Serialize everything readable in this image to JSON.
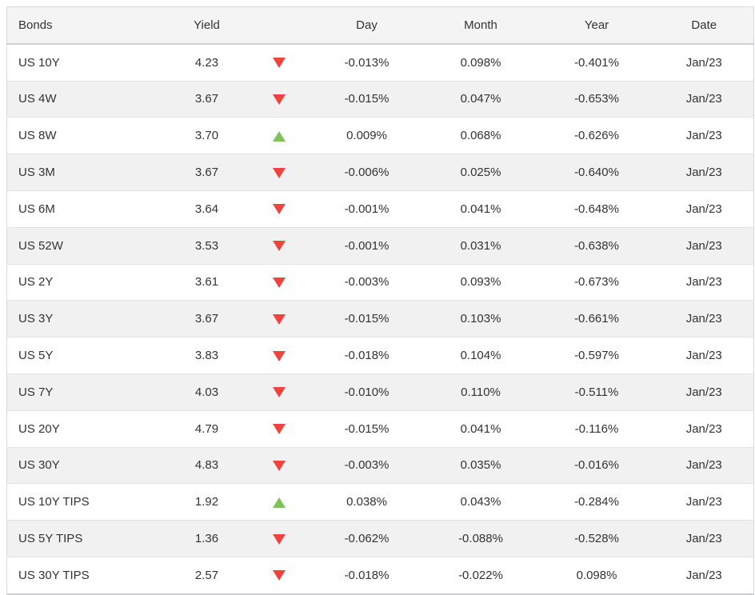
{
  "colors": {
    "trend_up": "#7bc356",
    "trend_down": "#ee443e",
    "header_background": "#f4f4f5",
    "row_stripe": "#f1f1f2",
    "border": "#d9dadc",
    "text": "#333333"
  },
  "table": {
    "columns": [
      {
        "key": "bond",
        "label": "Bonds"
      },
      {
        "key": "yield",
        "label": "Yield"
      },
      {
        "key": "trend",
        "label": ""
      },
      {
        "key": "day",
        "label": "Day"
      },
      {
        "key": "month",
        "label": "Month"
      },
      {
        "key": "year",
        "label": "Year"
      },
      {
        "key": "date",
        "label": "Date"
      }
    ],
    "rows": [
      {
        "bond": "US 10Y",
        "yield": "4.23",
        "direction": "down",
        "day": "-0.013%",
        "month": "0.098%",
        "year": "-0.401%",
        "date": "Jan/23"
      },
      {
        "bond": "US 4W",
        "yield": "3.67",
        "direction": "down",
        "day": "-0.015%",
        "month": "0.047%",
        "year": "-0.653%",
        "date": "Jan/23"
      },
      {
        "bond": "US 8W",
        "yield": "3.70",
        "direction": "up",
        "day": "0.009%",
        "month": "0.068%",
        "year": "-0.626%",
        "date": "Jan/23"
      },
      {
        "bond": "US 3M",
        "yield": "3.67",
        "direction": "down",
        "day": "-0.006%",
        "month": "0.025%",
        "year": "-0.640%",
        "date": "Jan/23"
      },
      {
        "bond": "US 6M",
        "yield": "3.64",
        "direction": "down",
        "day": "-0.001%",
        "month": "0.041%",
        "year": "-0.648%",
        "date": "Jan/23"
      },
      {
        "bond": "US 52W",
        "yield": "3.53",
        "direction": "down",
        "day": "-0.001%",
        "month": "0.031%",
        "year": "-0.638%",
        "date": "Jan/23"
      },
      {
        "bond": "US 2Y",
        "yield": "3.61",
        "direction": "down",
        "day": "-0.003%",
        "month": "0.093%",
        "year": "-0.673%",
        "date": "Jan/23"
      },
      {
        "bond": "US 3Y",
        "yield": "3.67",
        "direction": "down",
        "day": "-0.015%",
        "month": "0.103%",
        "year": "-0.661%",
        "date": "Jan/23"
      },
      {
        "bond": "US 5Y",
        "yield": "3.83",
        "direction": "down",
        "day": "-0.018%",
        "month": "0.104%",
        "year": "-0.597%",
        "date": "Jan/23"
      },
      {
        "bond": "US 7Y",
        "yield": "4.03",
        "direction": "down",
        "day": "-0.010%",
        "month": "0.110%",
        "year": "-0.511%",
        "date": "Jan/23"
      },
      {
        "bond": "US 20Y",
        "yield": "4.79",
        "direction": "down",
        "day": "-0.015%",
        "month": "0.041%",
        "year": "-0.116%",
        "date": "Jan/23"
      },
      {
        "bond": "US 30Y",
        "yield": "4.83",
        "direction": "down",
        "day": "-0.003%",
        "month": "0.035%",
        "year": "-0.016%",
        "date": "Jan/23"
      },
      {
        "bond": "US 10Y TIPS",
        "yield": "1.92",
        "direction": "up",
        "day": "0.038%",
        "month": "0.043%",
        "year": "-0.284%",
        "date": "Jan/23"
      },
      {
        "bond": "US 5Y TIPS",
        "yield": "1.36",
        "direction": "down",
        "day": "-0.062%",
        "month": "-0.088%",
        "year": "-0.528%",
        "date": "Jan/23"
      },
      {
        "bond": "US 30Y TIPS",
        "yield": "2.57",
        "direction": "down",
        "day": "-0.018%",
        "month": "-0.022%",
        "year": "0.098%",
        "date": "Jan/23"
      }
    ]
  }
}
